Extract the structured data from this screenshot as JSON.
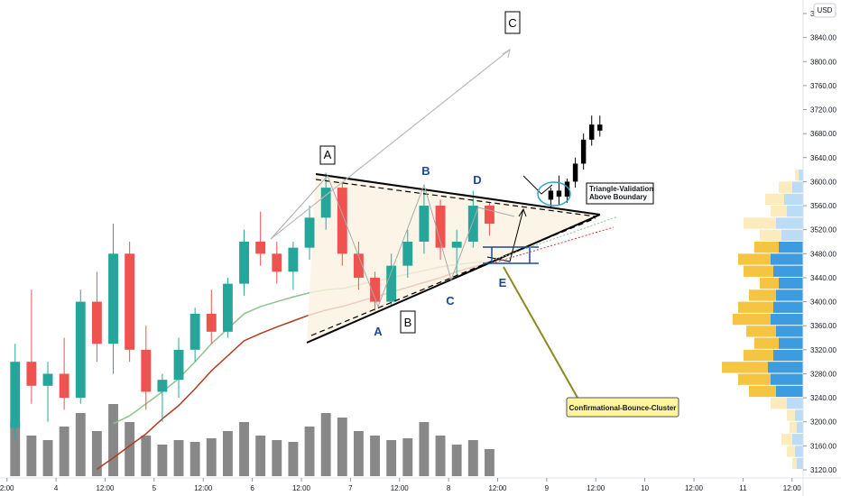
{
  "chart_data": {
    "type": "candlestick",
    "currency": "USD",
    "xlim": [
      -13.7,
      182.7
    ],
    "ylim": [
      3120,
      3880
    ],
    "xticks": [
      {
        "value": -12,
        "label": "2:00"
      },
      {
        "value": 0,
        "label": "4"
      },
      {
        "value": 12,
        "label": "12:00"
      },
      {
        "value": 24,
        "label": "5"
      },
      {
        "value": 36,
        "label": "12:00"
      },
      {
        "value": 48,
        "label": "6"
      },
      {
        "value": 60,
        "label": "12:00"
      },
      {
        "value": 72,
        "label": "7"
      },
      {
        "value": 84,
        "label": "12:00"
      },
      {
        "value": 96,
        "label": "8"
      },
      {
        "value": 108,
        "label": "12:00"
      },
      {
        "value": 120,
        "label": "9"
      },
      {
        "value": 132,
        "label": "12:00"
      },
      {
        "value": 144,
        "label": "10"
      },
      {
        "value": 156,
        "label": "12:00"
      },
      {
        "value": 168,
        "label": "11"
      },
      {
        "value": 180,
        "label": "12:00"
      }
    ],
    "yticks": [
      {
        "value": 3120,
        "label": "3120.00"
      },
      {
        "value": 3160,
        "label": "3160.00"
      },
      {
        "value": 3200,
        "label": "3200.00"
      },
      {
        "value": 3240,
        "label": "3240.00"
      },
      {
        "value": 3280,
        "label": "3280.00"
      },
      {
        "value": 3320,
        "label": "3320.00"
      },
      {
        "value": 3360,
        "label": "3360.00"
      },
      {
        "value": 3400,
        "label": "3400.00"
      },
      {
        "value": 3440,
        "label": "3440.00"
      },
      {
        "value": 3480,
        "label": "3480.00"
      },
      {
        "value": 3520,
        "label": "3520.00"
      },
      {
        "value": 3560,
        "label": "3560.00"
      },
      {
        "value": 3600,
        "label": "3600.00"
      },
      {
        "value": 3640,
        "label": "3640.00"
      },
      {
        "value": 3680,
        "label": "3680.00"
      },
      {
        "value": 3720,
        "label": "3720.00"
      },
      {
        "value": 3760,
        "label": "3760.00"
      },
      {
        "value": 3800,
        "label": "3800.00"
      },
      {
        "value": 3840,
        "label": "3840.00"
      },
      {
        "value": 3880,
        "label": "3880.00"
      }
    ],
    "up_color": "#26a69a",
    "down_color": "#ef5350",
    "candles": {
      "x": [
        -10,
        -6,
        -2,
        2,
        6,
        10,
        14,
        18,
        22,
        26,
        30,
        34,
        38,
        42,
        46,
        50,
        54,
        58,
        62,
        66,
        70,
        74,
        78,
        82,
        86,
        90,
        94,
        98,
        102,
        106
      ],
      "open": [
        3190,
        3300,
        3260,
        3280,
        3240,
        3400,
        3330,
        3480,
        3320,
        3250,
        3270,
        3320,
        3380,
        3350,
        3430,
        3500,
        3480,
        3450,
        3490,
        3540,
        3590,
        3480,
        3440,
        3400,
        3460,
        3500,
        3560,
        3490,
        3500,
        3560
      ],
      "high": [
        3330,
        3420,
        3300,
        3340,
        3420,
        3450,
        3530,
        3500,
        3360,
        3280,
        3340,
        3390,
        3420,
        3440,
        3520,
        3550,
        3500,
        3500,
        3560,
        3615,
        3600,
        3500,
        3450,
        3480,
        3520,
        3590,
        3570,
        3520,
        3585,
        3565
      ],
      "low": [
        3170,
        3230,
        3200,
        3220,
        3230,
        3300,
        3280,
        3300,
        3220,
        3200,
        3240,
        3300,
        3330,
        3340,
        3410,
        3460,
        3430,
        3420,
        3470,
        3520,
        3460,
        3420,
        3385,
        3395,
        3440,
        3480,
        3470,
        3440,
        3490,
        3510
      ],
      "close": [
        3300,
        3260,
        3280,
        3240,
        3400,
        3330,
        3480,
        3320,
        3250,
        3270,
        3320,
        3380,
        3350,
        3430,
        3500,
        3480,
        3450,
        3490,
        3540,
        3590,
        3480,
        3440,
        3400,
        3460,
        3500,
        3560,
        3490,
        3500,
        3560,
        3530
      ],
      "volume": [
        60,
        45,
        40,
        55,
        70,
        50,
        80,
        60,
        45,
        35,
        40,
        38,
        42,
        50,
        60,
        45,
        40,
        38,
        55,
        70,
        65,
        50,
        45,
        40,
        42,
        60,
        45,
        35,
        40,
        30
      ]
    },
    "volume_color": "#555555",
    "projection": {
      "color": "#000000",
      "x": [
        121,
        123,
        125,
        127,
        129,
        131,
        133
      ],
      "open": [
        3570,
        3585,
        3575,
        3600,
        3630,
        3670,
        3695
      ],
      "high": [
        3590,
        3610,
        3605,
        3640,
        3680,
        3710,
        3710
      ],
      "low": [
        3555,
        3560,
        3565,
        3590,
        3620,
        3660,
        3675
      ],
      "close": [
        3585,
        3575,
        3600,
        3630,
        3670,
        3695,
        3685
      ]
    },
    "moving_averages": [
      {
        "color": "#8bc48a",
        "values": [
          null,
          null,
          null,
          null,
          null,
          null,
          3197,
          3210,
          3230,
          3250,
          3272,
          3300,
          3330,
          3355,
          3380,
          3392,
          3400,
          3408,
          3415,
          3420,
          3422,
          3428,
          3434,
          3440,
          3446,
          3452,
          3458,
          3462,
          3465,
          3467
        ]
      },
      {
        "color": "#b23a1f",
        "values": [
          null,
          null,
          null,
          null,
          null,
          3121,
          3140,
          3160,
          3180,
          3205,
          3227,
          3255,
          3285,
          3310,
          3335,
          3347,
          3358,
          3368,
          3378,
          3386,
          3392,
          3400,
          3408,
          3416,
          3424,
          3432,
          3440,
          3450,
          3458,
          3464
        ]
      }
    ],
    "profile": {
      "prices": [
        3130,
        3150,
        3170,
        3190,
        3210,
        3230,
        3250,
        3270,
        3290,
        3310,
        3330,
        3350,
        3370,
        3390,
        3410,
        3430,
        3450,
        3470,
        3490,
        3510,
        3530,
        3550,
        3570,
        3590,
        3610
      ],
      "buy": [
        12,
        15,
        20,
        12,
        15,
        30,
        50,
        60,
        65,
        55,
        45,
        50,
        60,
        55,
        50,
        45,
        55,
        60,
        45,
        40,
        50,
        30,
        35,
        20,
        8
      ],
      "sell": [
        8,
        15,
        20,
        13,
        15,
        30,
        50,
        60,
        85,
        55,
        45,
        55,
        70,
        65,
        50,
        35,
        55,
        60,
        45,
        40,
        60,
        30,
        35,
        25,
        7
      ],
      "value_area": [
        3240,
        3490
      ],
      "buy_color": "#3d9be0",
      "sell_color": "#f5c542"
    },
    "annotations": [
      "A",
      "B",
      "D",
      "C",
      "A",
      "B",
      "C",
      "E",
      "Triangle-Validation",
      "Above Boundary",
      "Confirmational-Bounce-Cluster"
    ]
  }
}
